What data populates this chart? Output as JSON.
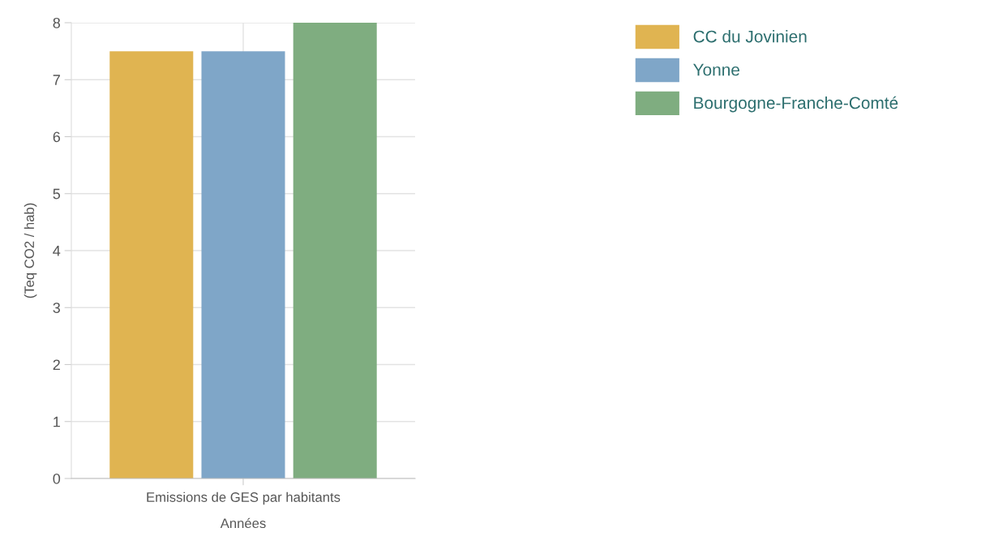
{
  "chart_data": {
    "type": "bar",
    "categories": [
      "Emissions de GES par habitants"
    ],
    "series": [
      {
        "name": "CC du Jovinien",
        "color": "#e0b451",
        "values": [
          7.5
        ]
      },
      {
        "name": "Yonne",
        "color": "#7fa6c8",
        "values": [
          7.5
        ]
      },
      {
        "name": "Bourgogne-Franche-Comté",
        "color": "#7fad80",
        "values": [
          8
        ]
      }
    ],
    "xlabel": "Années",
    "ylabel": "(Teq CO2 / hab)",
    "ylim": [
      0,
      8
    ],
    "yticks": [
      0,
      1,
      2,
      3,
      4,
      5,
      6,
      7,
      8
    ],
    "grid": true,
    "legend": "top right"
  }
}
